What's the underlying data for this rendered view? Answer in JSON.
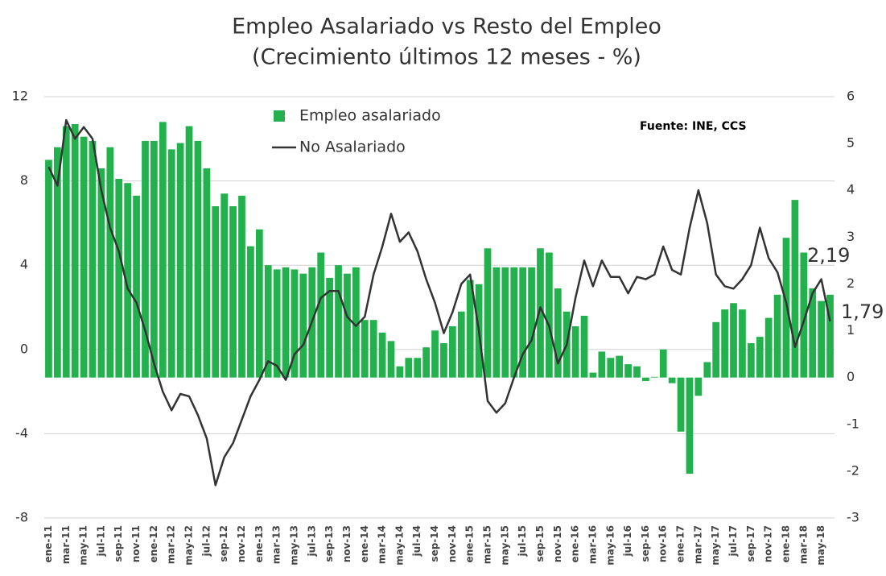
{
  "chart_data": {
    "type": "bar",
    "title": "Empleo Asalariado vs Resto del Empleo",
    "subtitle": "(Crecimiento últimos 12 meses  - %)",
    "source": "Fuente: INE, CCS",
    "annotations": [
      "2,19",
      "1,79"
    ],
    "categories": [
      "ene-11",
      null,
      "mar-11",
      null,
      "may-11",
      null,
      "jul-11",
      null,
      "sep-11",
      null,
      "nov-11",
      null,
      "ene-12",
      null,
      "mar-12",
      null,
      "may-12",
      null,
      "jul-12",
      null,
      "sep-12",
      null,
      "nov-12",
      null,
      "ene-13",
      null,
      "mar-13",
      null,
      "may-13",
      null,
      "jul-13",
      null,
      "sep-13",
      null,
      "nov-13",
      null,
      "ene-14",
      null,
      "mar-14",
      null,
      "may-14",
      null,
      "jul-14",
      null,
      "sep-14",
      null,
      "nov-14",
      null,
      "ene-15",
      null,
      "mar-15",
      null,
      "may-15",
      null,
      "jul-15",
      null,
      "sep-15",
      null,
      "nov-15",
      null,
      "ene-16",
      null,
      "mar-16",
      null,
      "may-16",
      null,
      "jul-16",
      null,
      "sep-16",
      null,
      "nov-16",
      null,
      "ene-17",
      null,
      "mar-17",
      null,
      "may-17",
      null,
      "jul-17",
      null,
      "sep-17",
      null,
      "nov-17",
      null,
      "ene-18",
      null,
      "mar-18",
      null,
      "may-18",
      null
    ],
    "series": [
      {
        "name": "Empleo asalariado",
        "type": "bar",
        "color": "#22b14c",
        "values": [
          9.0,
          9.6,
          10.6,
          10.7,
          10.1,
          9.9,
          8.6,
          9.6,
          8.1,
          7.9,
          7.3,
          9.9,
          9.9,
          10.8,
          9.5,
          9.8,
          10.6,
          9.9,
          8.6,
          6.8,
          7.4,
          6.8,
          7.3,
          4.9,
          5.7,
          4.0,
          3.8,
          3.9,
          3.8,
          3.6,
          3.9,
          4.6,
          3.4,
          4.0,
          3.6,
          3.9,
          1.4,
          1.4,
          0.8,
          0.4,
          -0.8,
          -0.4,
          -0.4,
          0.1,
          0.9,
          0.3,
          1.1,
          1.8,
          3.3,
          3.1,
          4.8,
          3.9,
          3.9,
          3.9,
          3.9,
          3.9,
          4.8,
          4.6,
          2.9,
          1.8,
          1.1,
          1.6,
          -1.1,
          -0.1,
          -0.4,
          -0.3,
          -0.7,
          -0.8,
          -1.5,
          -1.3,
          0.0,
          -1.6,
          -3.9,
          -5.9,
          -2.2,
          -0.6,
          1.3,
          1.9,
          2.2,
          1.9,
          0.3,
          0.6,
          1.5,
          2.6,
          5.3,
          7.1,
          4.6,
          2.9,
          2.3,
          2.6
        ]
      },
      {
        "name": "No Asalariado",
        "type": "line",
        "axis": "y2",
        "color": "#333333",
        "values": [
          4.5,
          4.1,
          5.5,
          5.1,
          5.35,
          5.1,
          4.0,
          3.2,
          2.7,
          1.9,
          1.6,
          1.0,
          0.3,
          -0.3,
          -0.7,
          -0.35,
          -0.4,
          -0.8,
          -1.3,
          -2.3,
          -1.7,
          -1.4,
          -0.9,
          -0.4,
          -0.05,
          0.35,
          0.25,
          -0.05,
          0.5,
          0.7,
          1.2,
          1.7,
          1.85,
          1.85,
          1.3,
          1.1,
          1.3,
          2.2,
          2.8,
          3.5,
          2.9,
          3.1,
          2.7,
          2.1,
          1.6,
          0.95,
          1.4,
          2.0,
          2.2,
          1.0,
          -0.5,
          -0.75,
          -0.55,
          0.0,
          0.5,
          0.8,
          1.5,
          1.1,
          0.3,
          0.7,
          1.7,
          2.5,
          1.95,
          2.5,
          2.15,
          2.15,
          1.8,
          2.15,
          2.1,
          2.2,
          2.8,
          2.3,
          2.2,
          3.2,
          4.0,
          3.3,
          2.2,
          1.95,
          1.9,
          2.1,
          2.4,
          3.2,
          2.55,
          2.25,
          1.6,
          0.65,
          1.2,
          1.8,
          2.1,
          1.2
        ]
      }
    ],
    "ylim": [
      -8,
      12
    ],
    "yticks": [
      -8,
      -4,
      0,
      4,
      8,
      12
    ],
    "y2lim": [
      -3,
      6
    ],
    "y2ticks": [
      -3,
      -2,
      -1,
      0,
      1,
      2,
      3,
      4,
      5,
      6
    ],
    "grid": true,
    "legend": "top"
  }
}
